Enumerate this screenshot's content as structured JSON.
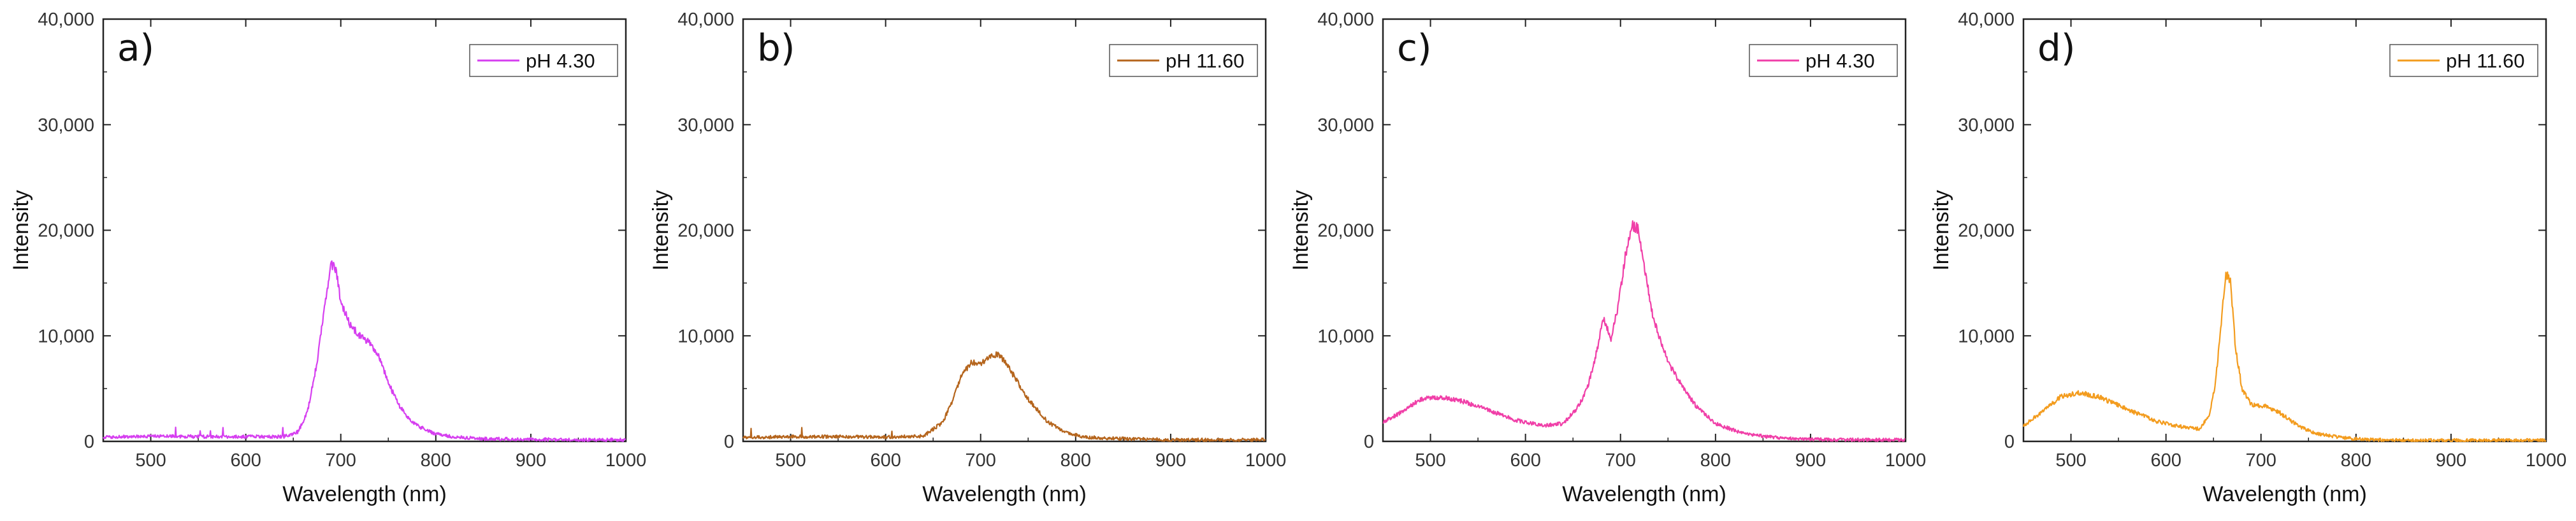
{
  "figure": {
    "panel_count": 4
  },
  "chart_data": [
    {
      "type": "line",
      "panel_label": "a)",
      "title": "",
      "xlabel": "Wavelength (nm)",
      "ylabel": "Intensity",
      "xlim": [
        450,
        1000
      ],
      "ylim": [
        0,
        40000
      ],
      "xticks": [
        500,
        600,
        700,
        800,
        900,
        1000
      ],
      "yticks": [
        0,
        10000,
        20000,
        30000,
        40000
      ],
      "ytick_labels": [
        "0",
        "10,000",
        "20,000",
        "30,000",
        "40,000"
      ],
      "grid": false,
      "legend_position": "top-right",
      "series": [
        {
          "name": "pH 4.30",
          "color": "#d63ff0",
          "x": [
            450,
            500,
            550,
            600,
            640,
            655,
            665,
            675,
            683,
            690,
            695,
            700,
            710,
            720,
            730,
            740,
            750,
            760,
            770,
            780,
            800,
            820,
            850,
            900,
            950,
            1000
          ],
          "y": [
            400,
            500,
            450,
            450,
            450,
            900,
            2800,
            7500,
            13000,
            16800,
            16200,
            13200,
            11000,
            10000,
            9400,
            8000,
            5600,
            3600,
            2300,
            1500,
            700,
            400,
            250,
            200,
            150,
            150
          ]
        }
      ]
    },
    {
      "type": "line",
      "panel_label": "b)",
      "title": "",
      "xlabel": "Wavelength (nm)",
      "ylabel": "Intensity",
      "xlim": [
        450,
        1000
      ],
      "ylim": [
        0,
        40000
      ],
      "xticks": [
        500,
        600,
        700,
        800,
        900,
        1000
      ],
      "yticks": [
        0,
        10000,
        20000,
        30000,
        40000
      ],
      "ytick_labels": [
        "0",
        "10,000",
        "20,000",
        "30,000",
        "40,000"
      ],
      "grid": false,
      "legend_position": "top-right",
      "series": [
        {
          "name": "pH 11.60",
          "color": "#b5651d",
          "x": [
            450,
            500,
            550,
            600,
            640,
            660,
            670,
            680,
            690,
            700,
            710,
            718,
            725,
            735,
            750,
            770,
            790,
            810,
            850,
            900,
            950,
            1000
          ],
          "y": [
            350,
            450,
            450,
            400,
            500,
            1800,
            3800,
            6200,
            7500,
            7300,
            8000,
            8300,
            7600,
            6200,
            4000,
            1900,
            800,
            400,
            250,
            150,
            150,
            150
          ]
        }
      ]
    },
    {
      "type": "line",
      "panel_label": "c)",
      "title": "",
      "xlabel": "Wavelength (nm)",
      "ylabel": "Intensity",
      "xlim": [
        450,
        1000
      ],
      "ylim": [
        0,
        40000
      ],
      "xticks": [
        500,
        600,
        700,
        800,
        900,
        1000
      ],
      "yticks": [
        0,
        10000,
        20000,
        30000,
        40000
      ],
      "ytick_labels": [
        "0",
        "10,000",
        "20,000",
        "30,000",
        "40,000"
      ],
      "grid": false,
      "legend_position": "top-right",
      "series": [
        {
          "name": "pH 4.30",
          "color": "#f03fa8",
          "x": [
            450,
            470,
            490,
            510,
            530,
            560,
            590,
            620,
            640,
            655,
            665,
            675,
            682,
            690,
            697,
            705,
            712,
            718,
            725,
            735,
            750,
            765,
            780,
            800,
            830,
            870,
            900,
            950,
            1000
          ],
          "y": [
            1800,
            2800,
            4000,
            4200,
            3900,
            3000,
            2000,
            1500,
            1700,
            3200,
            5000,
            8500,
            11700,
            9800,
            12500,
            17500,
            20500,
            20200,
            16500,
            11500,
            7500,
            5200,
            3300,
            1700,
            700,
            300,
            200,
            150,
            150
          ]
        }
      ]
    },
    {
      "type": "line",
      "panel_label": "d)",
      "title": "",
      "xlabel": "Wavelength (nm)",
      "ylabel": "Intensity",
      "xlim": [
        450,
        1000
      ],
      "ylim": [
        0,
        40000
      ],
      "xticks": [
        500,
        600,
        700,
        800,
        900,
        1000
      ],
      "yticks": [
        0,
        10000,
        20000,
        30000,
        40000
      ],
      "ytick_labels": [
        "0",
        "10,000",
        "20,000",
        "30,000",
        "40,000"
      ],
      "grid": false,
      "legend_position": "top-right",
      "series": [
        {
          "name": "pH 11.60",
          "color": "#f39c1e",
          "x": [
            450,
            470,
            490,
            510,
            530,
            560,
            590,
            620,
            635,
            645,
            652,
            658,
            663,
            668,
            673,
            680,
            690,
            705,
            720,
            740,
            760,
            790,
            820,
            850,
            900,
            950,
            1000
          ],
          "y": [
            1500,
            2800,
            4300,
            4600,
            4200,
            3000,
            1900,
            1300,
            1200,
            2300,
            5500,
            11000,
            16000,
            15000,
            9000,
            5000,
            3500,
            3300,
            2700,
            1400,
            700,
            300,
            150,
            100,
            100,
            100,
            100
          ]
        }
      ]
    }
  ]
}
